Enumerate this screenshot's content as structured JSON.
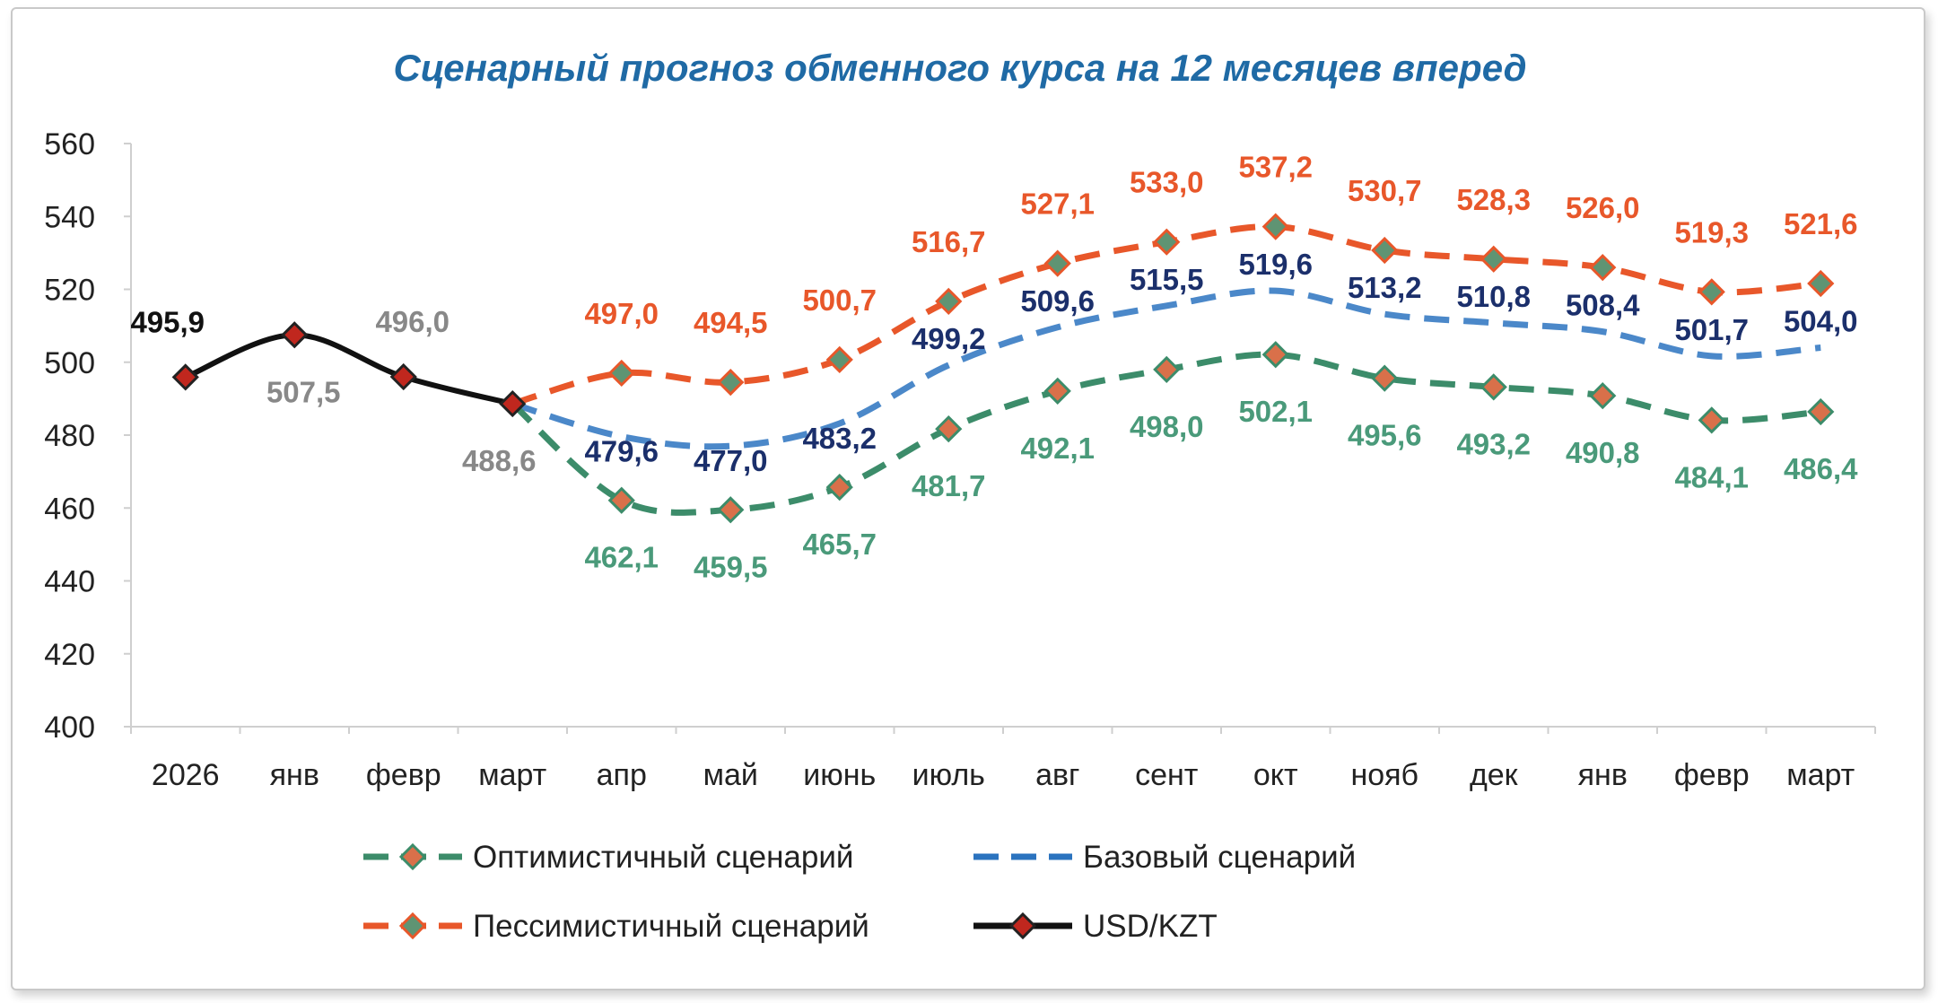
{
  "chart_data": {
    "type": "line",
    "title": "Сценарный прогноз обменного курса на 12 месяцев вперед",
    "categories": [
      "2026",
      "янв",
      "февр",
      "март",
      "апр",
      "май",
      "июнь",
      "июль",
      "авг",
      "сент",
      "окт",
      "нояб",
      "дек",
      "янв",
      "февр",
      "март"
    ],
    "ylim": [
      400,
      560
    ],
    "yticks": [
      400,
      420,
      440,
      460,
      480,
      500,
      520,
      540,
      560
    ],
    "grid": false,
    "legend_position": "bottom",
    "colors": {
      "title": "#1f6aa5",
      "optimistic": "#3c8c6a",
      "optimistic_label": "#4a9a7a",
      "base": "#2b73bf",
      "base_label": "#1b2f6b",
      "pessimistic": "#e8572a",
      "pessimistic_label": "#e8572a",
      "usdkzt": "#111111",
      "usdkzt_marker": "#c0271e",
      "usdkzt_label": "#888888"
    },
    "series": [
      {
        "key": "usdkzt",
        "name": "USD/KZT",
        "values": [
          495.9,
          507.5,
          496.0,
          488.6,
          null,
          null,
          null,
          null,
          null,
          null,
          null,
          null,
          null,
          null,
          null,
          null
        ],
        "labels": [
          "495,9",
          "507,5",
          "496,0",
          "488,6",
          "",
          "",
          "",
          "",
          "",
          "",
          "",
          "",
          "",
          "",
          "",
          ""
        ]
      },
      {
        "key": "optimistic",
        "name": "Оптимистичный сценарий",
        "values": [
          null,
          null,
          null,
          488.6,
          462.1,
          459.5,
          465.7,
          481.7,
          492.1,
          498.0,
          502.1,
          495.6,
          493.2,
          490.8,
          484.1,
          486.4
        ],
        "labels": [
          "",
          "",
          "",
          "",
          "462,1",
          "459,5",
          "465,7",
          "481,7",
          "492,1",
          "498,0",
          "502,1",
          "495,6",
          "493,2",
          "490,8",
          "484,1",
          "486,4"
        ]
      },
      {
        "key": "base",
        "name": "Базовый сценарий",
        "values": [
          null,
          null,
          null,
          488.6,
          479.6,
          477.0,
          483.2,
          499.2,
          509.6,
          515.5,
          519.6,
          513.2,
          510.8,
          508.4,
          501.7,
          504.0
        ],
        "labels": [
          "",
          "",
          "",
          "",
          "479,6",
          "477,0",
          "483,2",
          "499,2",
          "509,6",
          "515,5",
          "519,6",
          "513,2",
          "510,8",
          "508,4",
          "501,7",
          "504,0"
        ]
      },
      {
        "key": "pessimistic",
        "name": "Пессимистичный сценарий",
        "values": [
          null,
          null,
          null,
          488.6,
          497.0,
          494.5,
          500.7,
          516.7,
          527.1,
          533.0,
          537.2,
          530.7,
          528.3,
          526.0,
          519.3,
          521.6
        ],
        "labels": [
          "",
          "",
          "",
          "",
          "497,0",
          "494,5",
          "500,7",
          "516,7",
          "527,1",
          "533,0",
          "537,2",
          "530,7",
          "528,3",
          "526,0",
          "519,3",
          "521,6"
        ]
      }
    ]
  }
}
